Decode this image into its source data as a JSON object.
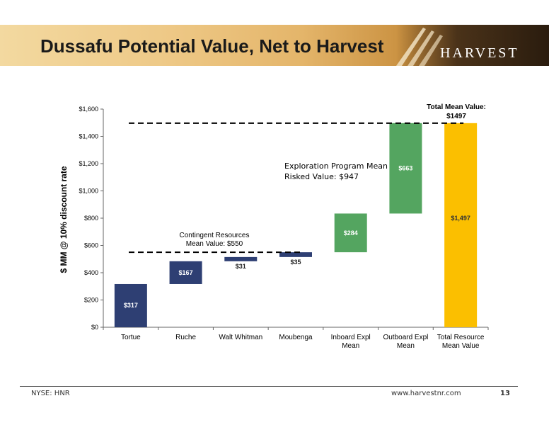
{
  "slide": {
    "title": "Dussafu Potential Value, Net to Harvest",
    "logo": "HARVEST",
    "footer_left": "NYSE: HNR",
    "footer_url": "www.harvestnr.com",
    "page_number": "13"
  },
  "colors": {
    "existing": "#2e3f73",
    "exploration": "#54a560",
    "total": "#fbbf00",
    "banner": "#e8be78"
  },
  "chart_data": {
    "type": "waterfall",
    "ylabel": "$ MM @ 10% discount rate",
    "ylim": [
      0,
      1600
    ],
    "yticks": [
      "$0",
      "$200",
      "$400",
      "$600",
      "$800",
      "$1,000",
      "$1,200",
      "$1,400",
      "$1,600"
    ],
    "categories": [
      "Tortue",
      "Ruche",
      "Walt Whitman",
      "Moubenga",
      "Inboard Expl Mean",
      "Outboard Expl Mean",
      "Total Resource Mean Value"
    ],
    "category_lines": [
      [
        "Tortue"
      ],
      [
        "Ruche"
      ],
      [
        "Walt Whitman"
      ],
      [
        "Moubenga"
      ],
      [
        "Inboard Expl",
        "Mean"
      ],
      [
        "Outboard Expl",
        "Mean"
      ],
      [
        "Total Resource",
        "Mean Value"
      ]
    ],
    "bars": [
      {
        "start": 0,
        "end": 317,
        "label": "$317",
        "group": "existing"
      },
      {
        "start": 317,
        "end": 484,
        "label": "$167",
        "group": "existing"
      },
      {
        "start": 484,
        "end": 515,
        "label": "$31",
        "group": "existing"
      },
      {
        "start": 515,
        "end": 550,
        "label": "$35",
        "group": "existing"
      },
      {
        "start": 550,
        "end": 834,
        "label": "$284",
        "group": "exploration"
      },
      {
        "start": 834,
        "end": 1497,
        "label": "$663",
        "group": "exploration"
      },
      {
        "start": 0,
        "end": 1497,
        "label": "$1,497",
        "group": "total"
      }
    ],
    "annotations": {
      "contingent": [
        "Contingent Resources",
        "Mean Value: $550"
      ],
      "exploration": [
        "Exploration Program Mean",
        "Risked Value: $947"
      ],
      "total": [
        "Total Mean Value:",
        "$1497"
      ]
    },
    "reference_lines": [
      550,
      1497
    ]
  }
}
